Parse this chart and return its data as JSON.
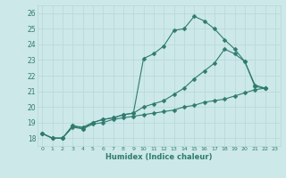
{
  "xlabel": "Humidex (Indice chaleur)",
  "background_color": "#cce8e8",
  "grid_color": "#b8d8d8",
  "line_color": "#2e7b6e",
  "text_color": "#2e7b6e",
  "xlim": [
    -0.5,
    23.5
  ],
  "ylim": [
    17.5,
    26.5
  ],
  "xtick_vals": [
    0,
    1,
    2,
    3,
    4,
    5,
    6,
    7,
    8,
    9,
    10,
    11,
    12,
    13,
    14,
    15,
    16,
    17,
    18,
    19,
    20,
    21,
    22,
    23
  ],
  "xtick_labels": [
    "0",
    "1",
    "2",
    "3",
    "4",
    "5",
    "6",
    "7",
    "8",
    "9",
    "10",
    "11",
    "12",
    "13",
    "14",
    "15",
    "16",
    "17",
    "18",
    "19",
    "20",
    "21",
    "22",
    "23"
  ],
  "ytick_vals": [
    18,
    19,
    20,
    21,
    22,
    23,
    24,
    25,
    26
  ],
  "ytick_labels": [
    "18",
    "19",
    "20",
    "21",
    "22",
    "23",
    "24",
    "25",
    "26"
  ],
  "line1_x": [
    0,
    1,
    2,
    3,
    4,
    5,
    6,
    7,
    8,
    9,
    10,
    11,
    12,
    13,
    14,
    15,
    16,
    17,
    18,
    19,
    20,
    21,
    22
  ],
  "line1_y": [
    18.3,
    18.0,
    18.0,
    18.8,
    18.7,
    19.0,
    19.2,
    19.3,
    19.5,
    19.6,
    23.1,
    23.4,
    23.9,
    24.9,
    25.0,
    25.8,
    25.5,
    25.0,
    24.3,
    23.7,
    22.9,
    21.3,
    21.2
  ],
  "line2_x": [
    0,
    1,
    2,
    3,
    4,
    5,
    6,
    7,
    8,
    9,
    10,
    11,
    12,
    13,
    14,
    15,
    16,
    17,
    18,
    19,
    20,
    21,
    22
  ],
  "line2_y": [
    18.3,
    18.0,
    18.0,
    18.7,
    18.6,
    18.9,
    19.0,
    19.2,
    19.3,
    19.4,
    19.5,
    19.6,
    19.7,
    19.8,
    20.0,
    20.1,
    20.3,
    20.4,
    20.5,
    20.7,
    20.9,
    21.1,
    21.2
  ],
  "line3_x": [
    0,
    1,
    2,
    3,
    4,
    5,
    6,
    7,
    8,
    9,
    10,
    11,
    12,
    13,
    14,
    15,
    16,
    17,
    18,
    19,
    20,
    21,
    22
  ],
  "line3_y": [
    18.3,
    18.0,
    18.0,
    18.8,
    18.6,
    19.0,
    19.2,
    19.3,
    19.5,
    19.6,
    20.0,
    20.2,
    20.4,
    20.8,
    21.2,
    21.8,
    22.3,
    22.8,
    23.7,
    23.4,
    22.9,
    21.4,
    21.2
  ]
}
